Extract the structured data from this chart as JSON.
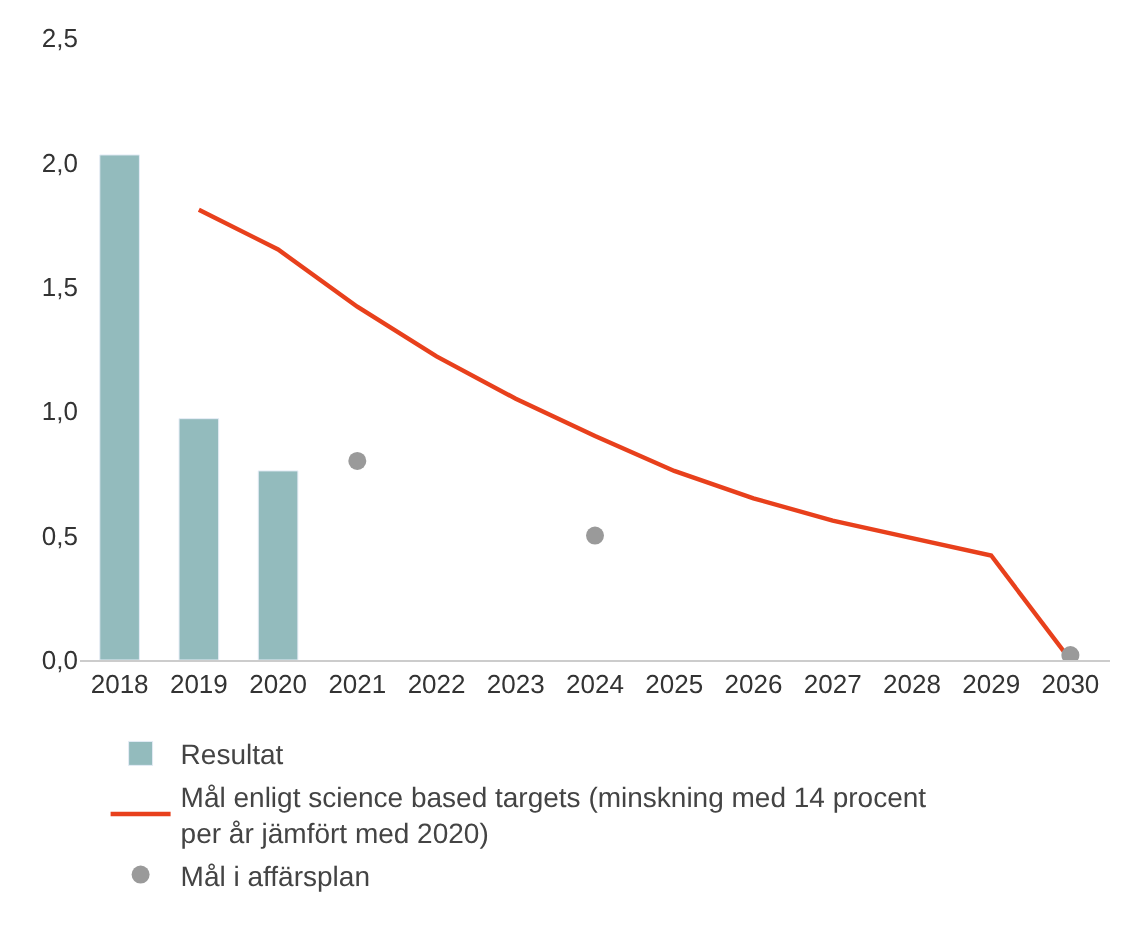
{
  "chart_data": {
    "type": "bar",
    "categories": [
      "2018",
      "2019",
      "2020",
      "2021",
      "2022",
      "2023",
      "2024",
      "2025",
      "2026",
      "2027",
      "2028",
      "2029",
      "2030"
    ],
    "series": [
      {
        "name": "Resultat",
        "color": "#93bbbd",
        "values": [
          2.03,
          0.97,
          0.76,
          null,
          null,
          null,
          null,
          null,
          null,
          null,
          null,
          null,
          null
        ]
      },
      {
        "name": "Mål enligt science based targets (minskning med 14 procent per år jämfört med 2020)",
        "type": "line",
        "color": "#e8401c",
        "values": [
          null,
          1.81,
          1.65,
          1.42,
          1.22,
          1.05,
          0.9,
          0.76,
          0.65,
          0.56,
          0.49,
          0.42,
          0.0
        ]
      },
      {
        "name": "Mål i affärsplan",
        "type": "scatter",
        "marker": "circle",
        "color": "#9a9a9a",
        "values": [
          null,
          null,
          null,
          0.8,
          null,
          null,
          0.5,
          null,
          null,
          null,
          null,
          null,
          0.02
        ]
      }
    ],
    "ylim": [
      0,
      2.5
    ],
    "yticks": [
      {
        "value": 0,
        "label": "0,0"
      },
      {
        "value": 0.5,
        "label": "0,5"
      },
      {
        "value": 1,
        "label": "1,0"
      },
      {
        "value": 1.5,
        "label": "1,5"
      },
      {
        "value": 2,
        "label": "2,0"
      },
      {
        "value": 2.5,
        "label": "2,5"
      }
    ],
    "legend": "bottom",
    "line_style": "solid"
  }
}
